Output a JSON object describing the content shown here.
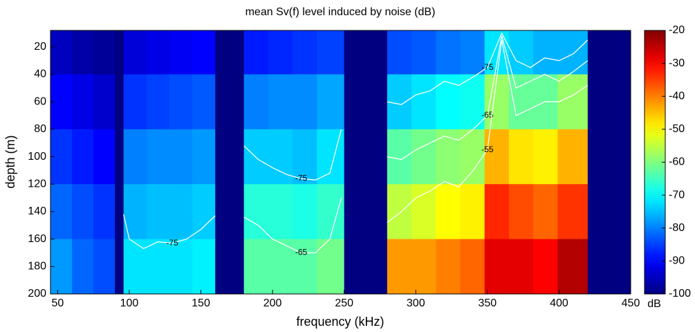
{
  "chart_data": {
    "type": "heatmap",
    "title": "mean Sv(f) level induced by noise (dB)",
    "x_label": "frequency (kHz)",
    "y_label": "depth (m)",
    "colorbar_label": "dB",
    "xlim": [
      45,
      450
    ],
    "ylim": [
      200,
      8
    ],
    "xticks": [
      50,
      100,
      150,
      200,
      250,
      300,
      350,
      400,
      450
    ],
    "yticks": [
      20,
      40,
      60,
      80,
      100,
      120,
      140,
      160,
      180,
      200
    ],
    "clim": [
      -100,
      -20
    ],
    "cticks": [
      -100,
      -90,
      -80,
      -70,
      -60,
      -50,
      -40,
      -30,
      -20
    ],
    "colormap": "jet",
    "x_edges": [
      45,
      60,
      75,
      90,
      96,
      112,
      128,
      144,
      160,
      180,
      197,
      214,
      231,
      250,
      280,
      297,
      314,
      331,
      348,
      365,
      382,
      399,
      420,
      450
    ],
    "y_edges": [
      8,
      40,
      80,
      120,
      160,
      200
    ],
    "z": [
      [
        -95,
        -97,
        -98,
        -100,
        -93,
        -92,
        -91,
        -90,
        -100,
        -88,
        -87,
        -86,
        -85,
        -100,
        -84,
        -83,
        -81,
        -80,
        -72,
        -74,
        -76,
        -76,
        -100
      ],
      [
        -90,
        -92,
        -94,
        -100,
        -86,
        -85,
        -84,
        -83,
        -100,
        -80,
        -79,
        -79,
        -77,
        -100,
        -74,
        -72,
        -70,
        -69,
        -58,
        -62,
        -62,
        -58,
        -100
      ],
      [
        -86,
        -88,
        -90,
        -100,
        -80,
        -79,
        -79,
        -78,
        -100,
        -74,
        -74,
        -75,
        -72,
        -100,
        -63,
        -61,
        -59,
        -58,
        -44,
        -48,
        -49,
        -44,
        -100
      ],
      [
        -82,
        -84,
        -86,
        -100,
        -76,
        -75,
        -75,
        -74,
        -100,
        -67,
        -67,
        -68,
        -66,
        -100,
        -55,
        -53,
        -50,
        -49,
        -33,
        -36,
        -38,
        -34,
        -100
      ],
      [
        -78,
        -82,
        -84,
        -100,
        -72,
        -72,
        -72,
        -71,
        -100,
        -63,
        -63,
        -63,
        -61,
        -100,
        -42,
        -42,
        -40,
        -38,
        -28,
        -28,
        -30,
        -24,
        -100
      ]
    ],
    "contour_color": "#ffffff",
    "contours": [
      {
        "level": -75,
        "x": [
          96,
          100,
          110,
          120,
          130,
          140,
          150,
          160
        ],
        "y": [
          142,
          160,
          167,
          162,
          163,
          160,
          153,
          143
        ]
      },
      {
        "level": -75,
        "x": [
          180,
          190,
          200,
          210,
          220,
          230,
          240,
          248
        ],
        "y": [
          92,
          102,
          108,
          113,
          116,
          117,
          112,
          80
        ]
      },
      {
        "level": -65,
        "x": [
          180,
          190,
          200,
          210,
          220,
          230,
          240,
          248
        ],
        "y": [
          144,
          150,
          160,
          165,
          170,
          170,
          160,
          130
        ]
      },
      {
        "level": -75,
        "x": [
          280,
          290,
          300,
          310,
          320,
          330,
          340,
          350,
          360,
          370,
          380,
          390,
          400,
          410,
          420
        ],
        "y": [
          60,
          62,
          55,
          52,
          45,
          48,
          42,
          35,
          10,
          30,
          35,
          28,
          30,
          25,
          15
        ]
      },
      {
        "level": -65,
        "x": [
          280,
          290,
          300,
          310,
          320,
          330,
          340,
          350,
          360,
          370,
          380,
          390,
          400,
          410,
          420
        ],
        "y": [
          100,
          102,
          95,
          90,
          85,
          88,
          80,
          70,
          12,
          50,
          45,
          40,
          45,
          38,
          30
        ]
      },
      {
        "level": -55,
        "x": [
          280,
          290,
          300,
          310,
          320,
          330,
          340,
          350,
          360,
          370,
          380,
          390,
          400,
          410,
          420
        ],
        "y": [
          148,
          140,
          130,
          125,
          118,
          122,
          110,
          95,
          15,
          70,
          65,
          60,
          60,
          55,
          48
        ]
      }
    ]
  }
}
